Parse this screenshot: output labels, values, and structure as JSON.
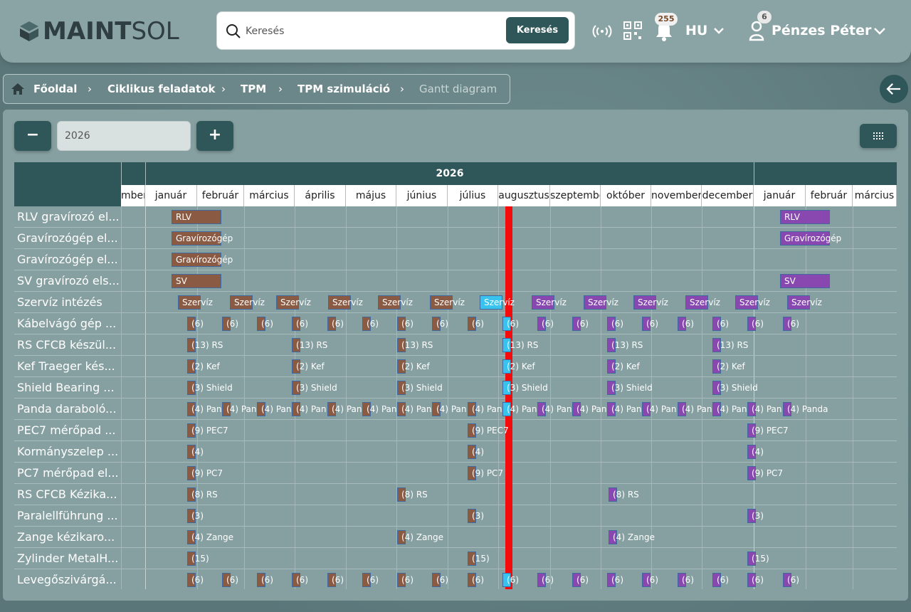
{
  "header": {
    "logo_text_bold": "MAINT",
    "logo_text_regular": "SOL",
    "search_placeholder": "Keresés",
    "search_button": "Keresés",
    "notifications_count": "255",
    "language": "HU",
    "user_badge": "6",
    "user_name": "Pénzes Péter",
    "icons": [
      "broadcast-icon",
      "qr-code-icon",
      "bell-icon",
      "user-icon"
    ]
  },
  "breadcrumb": [
    "Főoldal",
    "Ciklikus feladatok",
    "TPM",
    "TPM szimuláció",
    "Gantt diagram"
  ],
  "controls": {
    "minus": "−",
    "plus": "+",
    "year": "2026"
  },
  "gantt": {
    "year_label": "2026",
    "months": [
      "mber",
      "január",
      "február",
      "március",
      "április",
      "május",
      "június",
      "július",
      "augusztus",
      "szeptember",
      "október",
      "november",
      "december",
      "január",
      "február",
      "március"
    ],
    "rows": [
      "RLV gravírozó el...",
      "Gravírozógép el...",
      "Gravírozógép el...",
      "SV gravírozó els...",
      "Szervíz intézés",
      "Kábelvágó gép ...",
      "RS CFCB készül...",
      "Kef Traeger kés...",
      "Shield Bearing ...",
      "Panda daraboló...",
      "PEC7 mérőpad ...",
      "Kormányszelep ...",
      "PC7 mérőpad el...",
      "RS CFCB Kézika...",
      "Paralellführung ...",
      "Zange kézikaro...",
      "Zylinder MetalH...",
      "Levegőszivárgá..."
    ],
    "task_labels": {
      "rlv": "RLV",
      "grav": "Gravírozógép",
      "sv": "SV",
      "szerviz": "Szervíz",
      "six": "(6)",
      "rs13": "(13) RS",
      "kef": "(2) Kef",
      "shield": "(3) Shield",
      "panShort": "(4) Pan",
      "panda": "(4) Panda",
      "pec7": "(9) PEC7",
      "four": "(4)",
      "pc7": "(9) PC7",
      "rs8": "(8) RS",
      "three": "(3)",
      "zange": "(4) Zange",
      "fifteen": "(15)"
    },
    "colors": {
      "past": "#8b5a43",
      "current": "#38c3ef",
      "future": "#8848b0",
      "today": "#f40b0b"
    }
  }
}
